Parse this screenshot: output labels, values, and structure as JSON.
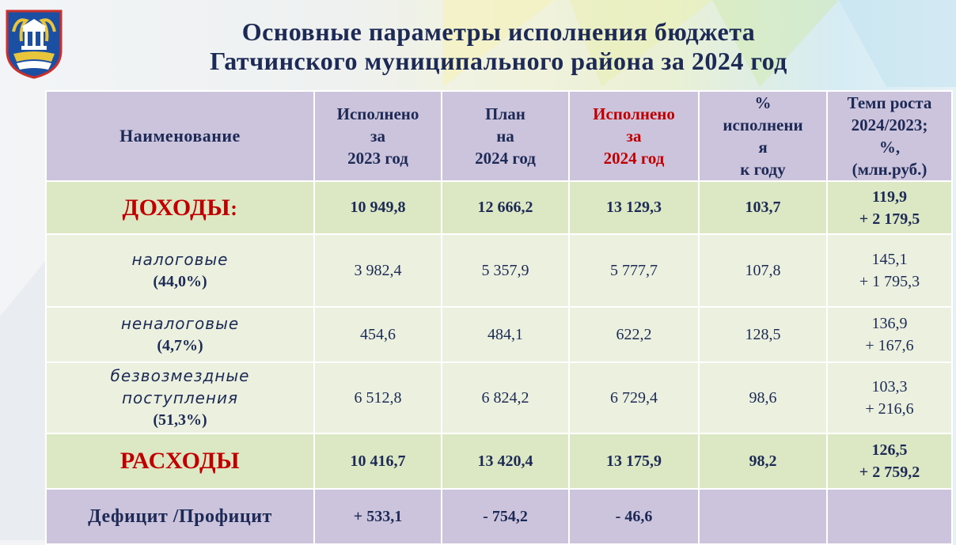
{
  "title": {
    "line1": "Основные параметры исполнения бюджета",
    "line2": "Гатчинского муниципального района за 2024 год"
  },
  "colors": {
    "header_bg": "#ccc3dd",
    "sum_row_bg": "#dce8c3",
    "sub_row_bg": "#ebf1de",
    "accent_red": "#c00000",
    "text_navy": "#1d2a55"
  },
  "logo_icon": "coat-of-arms-icon",
  "header": {
    "name": "Наименование",
    "col1": [
      "Исполнено",
      "за",
      "2023 год"
    ],
    "col2": [
      "План",
      "на",
      "2024 год"
    ],
    "col3": [
      "Исполнено",
      "за",
      "2024 год"
    ],
    "col4": [
      "%",
      "исполнени",
      "я",
      "к году"
    ],
    "col5": [
      "Темп роста",
      "2024/2023;",
      "%,",
      "(млн.руб.)"
    ]
  },
  "rows": {
    "income": {
      "label": "ДОХОДЫ",
      "colon": ":",
      "v2023": "10 949,8",
      "plan2024": "12 666,2",
      "v2024": "13 129,3",
      "pct": "103,7",
      "growth1": "119,9",
      "growth2": "+ 2 179,5"
    },
    "tax": {
      "label": "налоговые",
      "share": "(44,0%)",
      "v2023": "3 982,4",
      "plan2024": "5 357,9",
      "v2024": "5 777,7",
      "pct": "107,8",
      "growth1": "145,1",
      "growth2": "+ 1 795,3"
    },
    "nontax": {
      "label": "неналоговые",
      "share": "(4,7%)",
      "v2023": "454,6",
      "plan2024": "484,1",
      "v2024": "622,2",
      "pct": "128,5",
      "growth1": "136,9",
      "growth2": "+ 167,6"
    },
    "gratuitous": {
      "label1": "безвозмездные",
      "label2": "поступления",
      "share": "(51,3%)",
      "v2023": "6 512,8",
      "plan2024": "6 824,2",
      "v2024": "6 729,4",
      "pct": "98,6",
      "growth1": "103,3",
      "growth2": "+ 216,6"
    },
    "expenses": {
      "label": "РАСХОДЫ",
      "v2023": "10 416,7",
      "plan2024": "13 420,4",
      "v2024": "13 175,9",
      "pct": "98,2",
      "growth1": "126,5",
      "growth2": "+ 2 759,2"
    },
    "deficit": {
      "label": "Дефицит /Профицит",
      "v2023": "+ 533,1",
      "plan2024": "- 754,2",
      "v2024": "- 46,6",
      "pct": "",
      "growth": ""
    }
  }
}
